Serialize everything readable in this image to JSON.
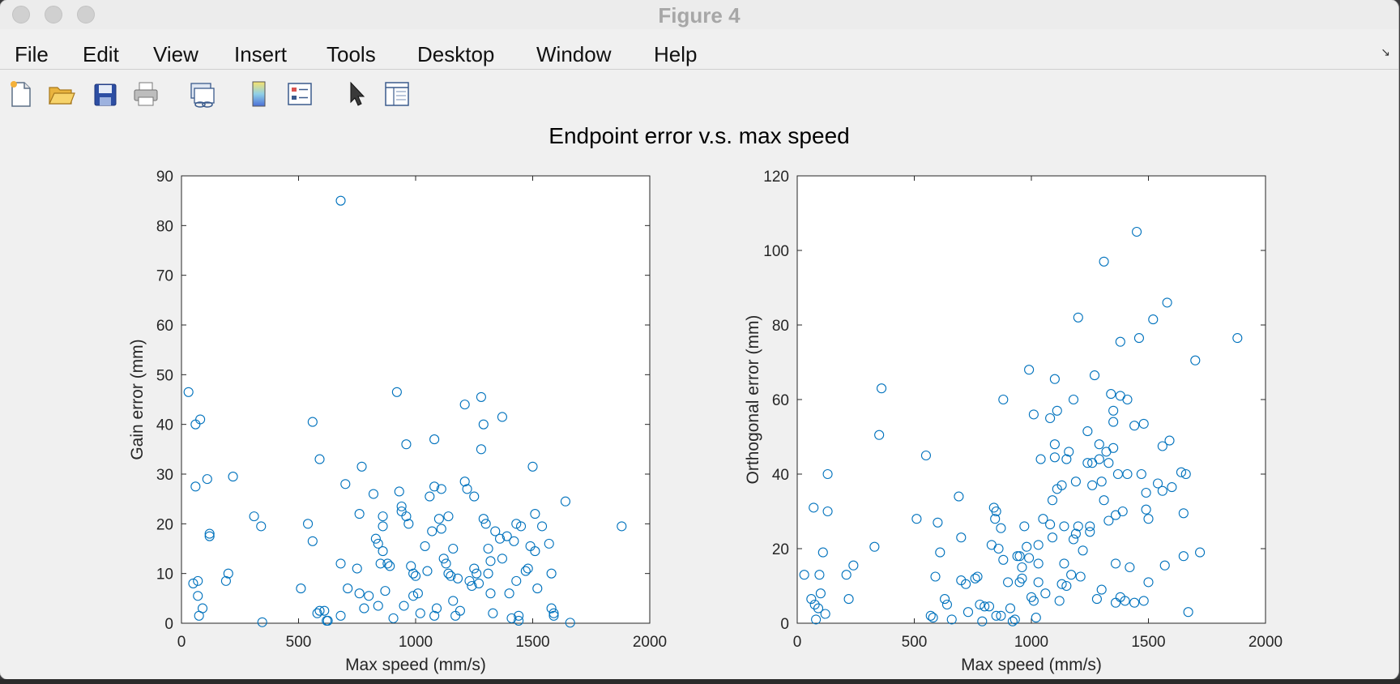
{
  "window": {
    "title": "Figure 4"
  },
  "menu": [
    "File",
    "Edit",
    "View",
    "Insert",
    "Tools",
    "Desktop",
    "Window",
    "Help"
  ],
  "toolbar": [
    {
      "name": "new-figure-icon"
    },
    {
      "name": "open-file-icon"
    },
    {
      "name": "save-icon"
    },
    {
      "name": "print-icon"
    },
    {
      "name": "link-figure-icon"
    },
    {
      "name": "colorbar-icon"
    },
    {
      "name": "legend-icon"
    },
    {
      "name": "pointer-icon"
    },
    {
      "name": "property-inspector-icon"
    }
  ],
  "figure_title": "Endpoint error v.s. max speed",
  "colors": {
    "marker": "#0072bd",
    "axes": "#262626"
  },
  "chart_data": [
    {
      "type": "scatter",
      "title": "",
      "xlabel": "Max speed (mm/s)",
      "ylabel": "Gain error (mm)",
      "xlim": [
        0,
        2000
      ],
      "ylim": [
        0,
        90
      ],
      "xticks": [
        0,
        500,
        1000,
        1500,
        2000
      ],
      "yticks": [
        0,
        10,
        20,
        30,
        40,
        50,
        60,
        70,
        80,
        90
      ],
      "marker": "open-circle",
      "points": [
        [
          30,
          46.5
        ],
        [
          60,
          40
        ],
        [
          70,
          8.5
        ],
        [
          80,
          41
        ],
        [
          60,
          27.5
        ],
        [
          110,
          29
        ],
        [
          120,
          18
        ],
        [
          120,
          17.5
        ],
        [
          90,
          3
        ],
        [
          75,
          1.5
        ],
        [
          50,
          8
        ],
        [
          70,
          5.5
        ],
        [
          190,
          8.5
        ],
        [
          200,
          10
        ],
        [
          220,
          29.5
        ],
        [
          310,
          21.5
        ],
        [
          340,
          19.5
        ],
        [
          345,
          0.2
        ],
        [
          510,
          7
        ],
        [
          540,
          20
        ],
        [
          560,
          40.5
        ],
        [
          560,
          16.5
        ],
        [
          580,
          2
        ],
        [
          590,
          2.5
        ],
        [
          590,
          33
        ],
        [
          610,
          2.5
        ],
        [
          620,
          0.5
        ],
        [
          625,
          0.5
        ],
        [
          680,
          85
        ],
        [
          680,
          12
        ],
        [
          680,
          1.5
        ],
        [
          700,
          28
        ],
        [
          710,
          7
        ],
        [
          750,
          11
        ],
        [
          760,
          6
        ],
        [
          760,
          22
        ],
        [
          770,
          31.5
        ],
        [
          780,
          3
        ],
        [
          800,
          5.5
        ],
        [
          820,
          26
        ],
        [
          830,
          17
        ],
        [
          840,
          16
        ],
        [
          840,
          3.5
        ],
        [
          850,
          12
        ],
        [
          860,
          21.5
        ],
        [
          860,
          19.5
        ],
        [
          860,
          14.5
        ],
        [
          870,
          6.5
        ],
        [
          880,
          12
        ],
        [
          890,
          11.5
        ],
        [
          905,
          1
        ],
        [
          920,
          46.5
        ],
        [
          930,
          26.5
        ],
        [
          940,
          23.5
        ],
        [
          940,
          22.5
        ],
        [
          950,
          3.5
        ],
        [
          960,
          36
        ],
        [
          960,
          21.5
        ],
        [
          970,
          20
        ],
        [
          980,
          11.5
        ],
        [
          990,
          10
        ],
        [
          990,
          5.5
        ],
        [
          1000,
          9.5
        ],
        [
          1010,
          6
        ],
        [
          1020,
          2
        ],
        [
          1040,
          15.5
        ],
        [
          1050,
          10.5
        ],
        [
          1060,
          25.5
        ],
        [
          1070,
          18.5
        ],
        [
          1080,
          37
        ],
        [
          1080,
          27.5
        ],
        [
          1080,
          1.5
        ],
        [
          1090,
          3
        ],
        [
          1100,
          21
        ],
        [
          1110,
          19
        ],
        [
          1110,
          27
        ],
        [
          1120,
          13
        ],
        [
          1130,
          12
        ],
        [
          1140,
          21.5
        ],
        [
          1140,
          10
        ],
        [
          1150,
          9.5
        ],
        [
          1160,
          15
        ],
        [
          1160,
          4.5
        ],
        [
          1170,
          1.5
        ],
        [
          1180,
          9
        ],
        [
          1190,
          2.5
        ],
        [
          1210,
          44
        ],
        [
          1210,
          28.5
        ],
        [
          1220,
          27
        ],
        [
          1230,
          8.5
        ],
        [
          1240,
          7.5
        ],
        [
          1250,
          25.5
        ],
        [
          1250,
          11
        ],
        [
          1260,
          10
        ],
        [
          1270,
          8
        ],
        [
          1280,
          35
        ],
        [
          1280,
          45.5
        ],
        [
          1290,
          40
        ],
        [
          1290,
          21
        ],
        [
          1300,
          20
        ],
        [
          1310,
          15
        ],
        [
          1310,
          10
        ],
        [
          1320,
          6
        ],
        [
          1320,
          12.5
        ],
        [
          1330,
          2
        ],
        [
          1340,
          18.5
        ],
        [
          1360,
          17
        ],
        [
          1370,
          13
        ],
        [
          1370,
          41.5
        ],
        [
          1390,
          17.5
        ],
        [
          1400,
          6
        ],
        [
          1410,
          1
        ],
        [
          1420,
          16.5
        ],
        [
          1430,
          20
        ],
        [
          1430,
          8.5
        ],
        [
          1440,
          1.5
        ],
        [
          1440,
          0.5
        ],
        [
          1450,
          19.5
        ],
        [
          1470,
          10.5
        ],
        [
          1480,
          11
        ],
        [
          1490,
          15.5
        ],
        [
          1500,
          31.5
        ],
        [
          1510,
          14.5
        ],
        [
          1510,
          22
        ],
        [
          1520,
          7
        ],
        [
          1540,
          19.5
        ],
        [
          1570,
          16
        ],
        [
          1580,
          10
        ],
        [
          1580,
          3
        ],
        [
          1590,
          2
        ],
        [
          1590,
          1.5
        ],
        [
          1640,
          24.5
        ],
        [
          1660,
          0.1
        ],
        [
          1880,
          19.5
        ]
      ]
    },
    {
      "type": "scatter",
      "title": "",
      "xlabel": "Max speed (mm/s)",
      "ylabel": "Orthogonal error (mm)",
      "xlim": [
        0,
        2000
      ],
      "ylim": [
        0,
        120
      ],
      "xticks": [
        0,
        500,
        1000,
        1500,
        2000
      ],
      "yticks": [
        0,
        20,
        40,
        60,
        80,
        100,
        120
      ],
      "marker": "open-circle",
      "points": [
        [
          30,
          13
        ],
        [
          60,
          6.5
        ],
        [
          70,
          31
        ],
        [
          75,
          5
        ],
        [
          80,
          1
        ],
        [
          90,
          4
        ],
        [
          95,
          13
        ],
        [
          100,
          8
        ],
        [
          110,
          19
        ],
        [
          120,
          2.5
        ],
        [
          130,
          30
        ],
        [
          130,
          40
        ],
        [
          210,
          13
        ],
        [
          220,
          6.5
        ],
        [
          240,
          15.5
        ],
        [
          330,
          20.5
        ],
        [
          350,
          50.5
        ],
        [
          360,
          63
        ],
        [
          510,
          28
        ],
        [
          550,
          45
        ],
        [
          570,
          2
        ],
        [
          580,
          1.5
        ],
        [
          590,
          12.5
        ],
        [
          600,
          27
        ],
        [
          610,
          19
        ],
        [
          630,
          6.5
        ],
        [
          640,
          5
        ],
        [
          660,
          1
        ],
        [
          690,
          34
        ],
        [
          700,
          23
        ],
        [
          700,
          11.5
        ],
        [
          720,
          10.5
        ],
        [
          730,
          3
        ],
        [
          760,
          12
        ],
        [
          770,
          12.5
        ],
        [
          780,
          5
        ],
        [
          790,
          0.5
        ],
        [
          800,
          4.5
        ],
        [
          820,
          4.5
        ],
        [
          830,
          21
        ],
        [
          840,
          31
        ],
        [
          845,
          28
        ],
        [
          850,
          2
        ],
        [
          850,
          30
        ],
        [
          860,
          20
        ],
        [
          870,
          2
        ],
        [
          870,
          25.5
        ],
        [
          880,
          17
        ],
        [
          880,
          60
        ],
        [
          900,
          11
        ],
        [
          910,
          4
        ],
        [
          920,
          0.5
        ],
        [
          930,
          1
        ],
        [
          940,
          18
        ],
        [
          950,
          18
        ],
        [
          950,
          11
        ],
        [
          960,
          12
        ],
        [
          960,
          15
        ],
        [
          970,
          26
        ],
        [
          980,
          20.5
        ],
        [
          990,
          17.5
        ],
        [
          990,
          68
        ],
        [
          1000,
          7
        ],
        [
          1010,
          6
        ],
        [
          1010,
          56
        ],
        [
          1020,
          1.5
        ],
        [
          1030,
          11
        ],
        [
          1030,
          21
        ],
        [
          1030,
          16
        ],
        [
          1040,
          44
        ],
        [
          1050,
          28
        ],
        [
          1060,
          8
        ],
        [
          1080,
          55
        ],
        [
          1080,
          26.5
        ],
        [
          1090,
          33
        ],
        [
          1090,
          23
        ],
        [
          1100,
          44.5
        ],
        [
          1100,
          48
        ],
        [
          1100,
          65.5
        ],
        [
          1110,
          57
        ],
        [
          1110,
          36
        ],
        [
          1120,
          6
        ],
        [
          1130,
          10.5
        ],
        [
          1130,
          37
        ],
        [
          1140,
          26
        ],
        [
          1140,
          16
        ],
        [
          1150,
          10
        ],
        [
          1150,
          44
        ],
        [
          1160,
          46
        ],
        [
          1170,
          13
        ],
        [
          1180,
          22.5
        ],
        [
          1180,
          60
        ],
        [
          1190,
          38
        ],
        [
          1190,
          24
        ],
        [
          1200,
          26
        ],
        [
          1200,
          82
        ],
        [
          1210,
          12.5
        ],
        [
          1220,
          19.5
        ],
        [
          1240,
          43
        ],
        [
          1240,
          51.5
        ],
        [
          1250,
          24.5
        ],
        [
          1250,
          26
        ],
        [
          1260,
          37
        ],
        [
          1260,
          43
        ],
        [
          1270,
          66.5
        ],
        [
          1280,
          6.5
        ],
        [
          1290,
          48
        ],
        [
          1290,
          44
        ],
        [
          1300,
          9
        ],
        [
          1300,
          38
        ],
        [
          1310,
          97
        ],
        [
          1310,
          33
        ],
        [
          1320,
          46
        ],
        [
          1330,
          43
        ],
        [
          1330,
          27.5
        ],
        [
          1340,
          61.5
        ],
        [
          1350,
          47
        ],
        [
          1350,
          57
        ],
        [
          1350,
          54
        ],
        [
          1360,
          29
        ],
        [
          1360,
          16
        ],
        [
          1360,
          5.5
        ],
        [
          1370,
          40
        ],
        [
          1380,
          7
        ],
        [
          1380,
          61
        ],
        [
          1380,
          75.5
        ],
        [
          1390,
          30
        ],
        [
          1400,
          6
        ],
        [
          1410,
          40
        ],
        [
          1410,
          60
        ],
        [
          1420,
          15
        ],
        [
          1440,
          53
        ],
        [
          1440,
          5.5
        ],
        [
          1450,
          105
        ],
        [
          1460,
          76.5
        ],
        [
          1470,
          40
        ],
        [
          1480,
          53.5
        ],
        [
          1480,
          6
        ],
        [
          1490,
          35
        ],
        [
          1490,
          30.5
        ],
        [
          1500,
          28
        ],
        [
          1500,
          11
        ],
        [
          1520,
          81.5
        ],
        [
          1540,
          37.5
        ],
        [
          1560,
          47.5
        ],
        [
          1560,
          35.5
        ],
        [
          1570,
          15.5
        ],
        [
          1580,
          86
        ],
        [
          1590,
          49
        ],
        [
          1600,
          36.5
        ],
        [
          1640,
          40.5
        ],
        [
          1650,
          18
        ],
        [
          1650,
          29.5
        ],
        [
          1660,
          40
        ],
        [
          1670,
          3
        ],
        [
          1700,
          70.5
        ],
        [
          1720,
          19
        ],
        [
          1880,
          76.5
        ]
      ]
    }
  ]
}
